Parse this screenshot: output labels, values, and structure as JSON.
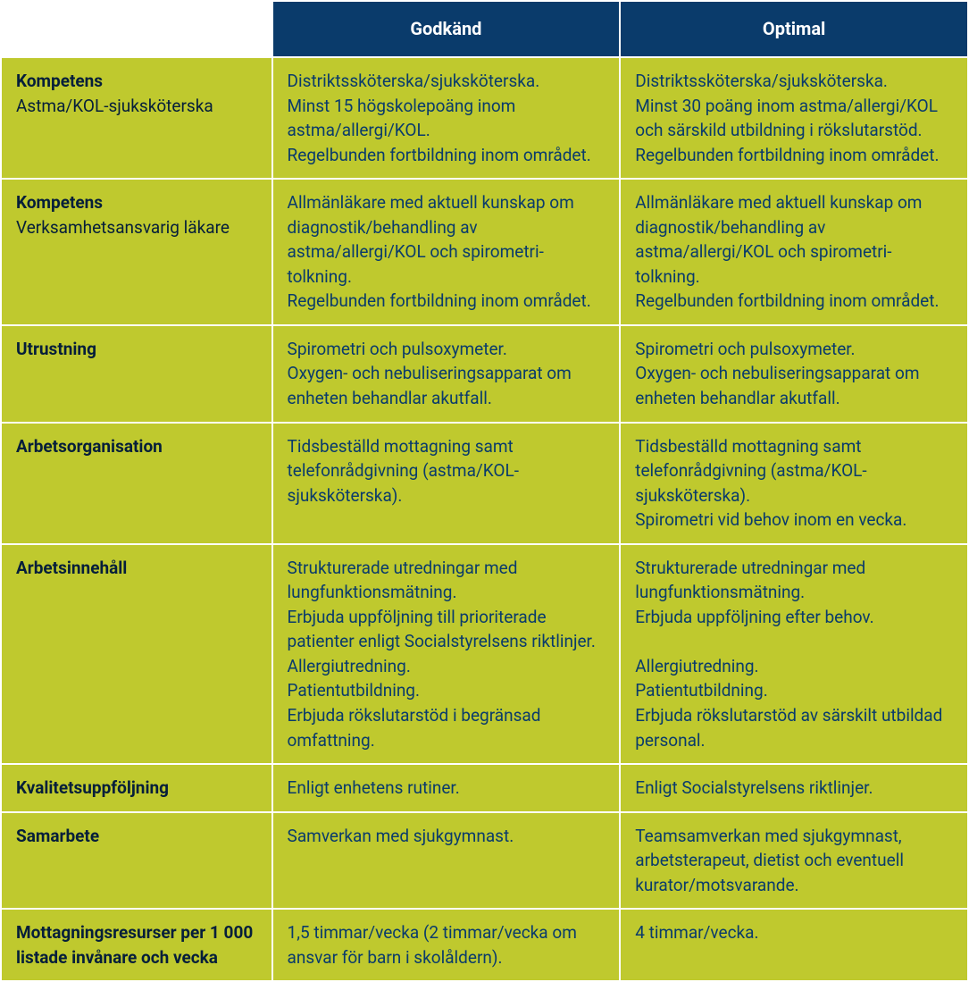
{
  "table": {
    "type": "table",
    "header_bg_color": "#0a3b6b",
    "header_text_color": "#ffffff",
    "cell_bg_color": "#bfc92e",
    "cell_text_color": "#0a3b6b",
    "row_header_text_color": "#051e3a",
    "border_spacing": 2,
    "columns": [
      {
        "label": "",
        "width": "28%"
      },
      {
        "label": "Godkänd",
        "width": "36%"
      },
      {
        "label": "Optimal",
        "width": "36%"
      }
    ],
    "rows": [
      {
        "label_bold": "Kompetens",
        "label_rest": "Astma/KOL-sjuksköterska",
        "godkand": "Distriktssköterska/sjuksköterska.\nMinst 15 högskolepoäng inom astma/allergi/KOL.\nRegelbunden fortbildning inom området.",
        "optimal": "Distriktssköterska/sjuksköterska.\nMinst 30 poäng inom astma/allergi/KOL och särskild utbildning i rökslutarstöd.\nRegelbunden fortbildning inom området."
      },
      {
        "label_bold": "Kompetens",
        "label_rest": "Verksamhetsansvarig läkare",
        "godkand": "Allmänläkare med aktuell kunskap om diagnostik/behandling av astma/allergi/KOL och spirometri-tolkning.\nRegelbunden fortbildning inom området.",
        "optimal": "Allmänläkare med aktuell kunskap om diagnostik/behandling av astma/allergi/KOL och spirometri-tolkning.\nRegelbunden fortbildning inom området."
      },
      {
        "label_bold": "Utrustning",
        "label_rest": "",
        "godkand": "Spirometri och pulsoxymeter.\nOxygen- och nebuliseringsapparat om enheten behandlar akutfall.",
        "optimal": "Spirometri och pulsoxymeter.\nOxygen- och nebuliseringsapparat om enheten behandlar akutfall."
      },
      {
        "label_bold": "Arbetsorganisation",
        "label_rest": "",
        "godkand": "Tidsbeställd mottagning samt telefonrådgivning (astma/KOL-sjuksköterska).",
        "optimal": "Tidsbeställd mottagning samt telefonrådgivning (astma/KOL-sjuksköterska).\nSpirometri vid behov inom en vecka."
      },
      {
        "label_bold": "Arbetsinnehåll",
        "label_rest": "",
        "godkand": "Strukturerade utredningar med lungfunktionsmätning.\nErbjuda uppföljning till prioriterade patienter enligt Socialstyrelsens riktlinjer.\nAllergiutredning.\nPatientutbildning.\nErbjuda rökslutarstöd i begränsad omfattning.",
        "optimal": "Strukturerade utredningar med lungfunktionsmätning.\nErbjuda uppföljning efter behov.\n\nAllergiutredning.\nPatientutbildning.\nErbjuda rökslutarstöd av särskilt utbildad personal."
      },
      {
        "label_bold": "Kvalitetsuppföljning",
        "label_rest": "",
        "godkand": "Enligt enhetens rutiner.",
        "optimal": "Enligt Socialstyrelsens riktlinjer."
      },
      {
        "label_bold": "Samarbete",
        "label_rest": "",
        "godkand": "Samverkan med sjukgymnast.",
        "optimal": "Teamsamverkan med sjukgymnast, arbetsterapeut, dietist och eventuell kurator/motsvarande."
      },
      {
        "label_bold": "Mottagningsresurser per 1 000 listade invånare och vecka",
        "label_rest": "",
        "godkand": "1,5 timmar/vecka (2 timmar/vecka om ansvar för barn i skolåldern).",
        "optimal": "4 timmar/vecka."
      }
    ]
  }
}
